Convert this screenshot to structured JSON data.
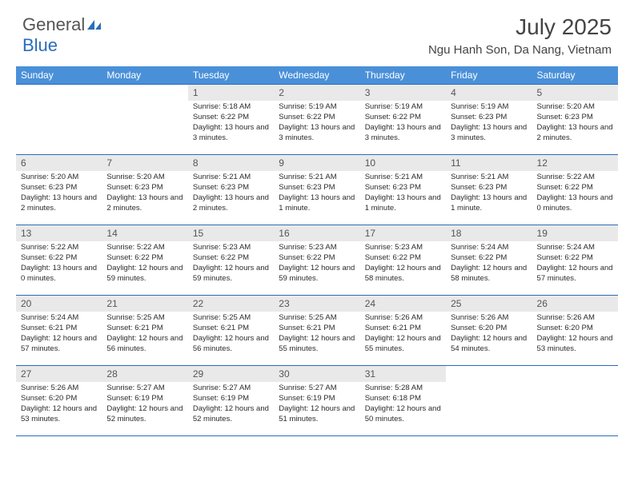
{
  "logo": {
    "text1": "General",
    "text2": "Blue"
  },
  "header": {
    "title": "July 2025",
    "location": "Ngu Hanh Son, Da Nang, Vietnam"
  },
  "colors": {
    "header_bg": "#4a90d9",
    "header_fg": "#ffffff",
    "daynum_bg": "#e9e9e9",
    "border": "#2a6db8",
    "text": "#2b2b2b"
  },
  "weekdays": [
    "Sunday",
    "Monday",
    "Tuesday",
    "Wednesday",
    "Thursday",
    "Friday",
    "Saturday"
  ],
  "weeks": [
    [
      null,
      null,
      {
        "n": "1",
        "sunrise": "5:18 AM",
        "sunset": "6:22 PM",
        "daylight": "13 hours and 3 minutes."
      },
      {
        "n": "2",
        "sunrise": "5:19 AM",
        "sunset": "6:22 PM",
        "daylight": "13 hours and 3 minutes."
      },
      {
        "n": "3",
        "sunrise": "5:19 AM",
        "sunset": "6:22 PM",
        "daylight": "13 hours and 3 minutes."
      },
      {
        "n": "4",
        "sunrise": "5:19 AM",
        "sunset": "6:23 PM",
        "daylight": "13 hours and 3 minutes."
      },
      {
        "n": "5",
        "sunrise": "5:20 AM",
        "sunset": "6:23 PM",
        "daylight": "13 hours and 2 minutes."
      }
    ],
    [
      {
        "n": "6",
        "sunrise": "5:20 AM",
        "sunset": "6:23 PM",
        "daylight": "13 hours and 2 minutes."
      },
      {
        "n": "7",
        "sunrise": "5:20 AM",
        "sunset": "6:23 PM",
        "daylight": "13 hours and 2 minutes."
      },
      {
        "n": "8",
        "sunrise": "5:21 AM",
        "sunset": "6:23 PM",
        "daylight": "13 hours and 2 minutes."
      },
      {
        "n": "9",
        "sunrise": "5:21 AM",
        "sunset": "6:23 PM",
        "daylight": "13 hours and 1 minute."
      },
      {
        "n": "10",
        "sunrise": "5:21 AM",
        "sunset": "6:23 PM",
        "daylight": "13 hours and 1 minute."
      },
      {
        "n": "11",
        "sunrise": "5:21 AM",
        "sunset": "6:23 PM",
        "daylight": "13 hours and 1 minute."
      },
      {
        "n": "12",
        "sunrise": "5:22 AM",
        "sunset": "6:22 PM",
        "daylight": "13 hours and 0 minutes."
      }
    ],
    [
      {
        "n": "13",
        "sunrise": "5:22 AM",
        "sunset": "6:22 PM",
        "daylight": "13 hours and 0 minutes."
      },
      {
        "n": "14",
        "sunrise": "5:22 AM",
        "sunset": "6:22 PM",
        "daylight": "12 hours and 59 minutes."
      },
      {
        "n": "15",
        "sunrise": "5:23 AM",
        "sunset": "6:22 PM",
        "daylight": "12 hours and 59 minutes."
      },
      {
        "n": "16",
        "sunrise": "5:23 AM",
        "sunset": "6:22 PM",
        "daylight": "12 hours and 59 minutes."
      },
      {
        "n": "17",
        "sunrise": "5:23 AM",
        "sunset": "6:22 PM",
        "daylight": "12 hours and 58 minutes."
      },
      {
        "n": "18",
        "sunrise": "5:24 AM",
        "sunset": "6:22 PM",
        "daylight": "12 hours and 58 minutes."
      },
      {
        "n": "19",
        "sunrise": "5:24 AM",
        "sunset": "6:22 PM",
        "daylight": "12 hours and 57 minutes."
      }
    ],
    [
      {
        "n": "20",
        "sunrise": "5:24 AM",
        "sunset": "6:21 PM",
        "daylight": "12 hours and 57 minutes."
      },
      {
        "n": "21",
        "sunrise": "5:25 AM",
        "sunset": "6:21 PM",
        "daylight": "12 hours and 56 minutes."
      },
      {
        "n": "22",
        "sunrise": "5:25 AM",
        "sunset": "6:21 PM",
        "daylight": "12 hours and 56 minutes."
      },
      {
        "n": "23",
        "sunrise": "5:25 AM",
        "sunset": "6:21 PM",
        "daylight": "12 hours and 55 minutes."
      },
      {
        "n": "24",
        "sunrise": "5:26 AM",
        "sunset": "6:21 PM",
        "daylight": "12 hours and 55 minutes."
      },
      {
        "n": "25",
        "sunrise": "5:26 AM",
        "sunset": "6:20 PM",
        "daylight": "12 hours and 54 minutes."
      },
      {
        "n": "26",
        "sunrise": "5:26 AM",
        "sunset": "6:20 PM",
        "daylight": "12 hours and 53 minutes."
      }
    ],
    [
      {
        "n": "27",
        "sunrise": "5:26 AM",
        "sunset": "6:20 PM",
        "daylight": "12 hours and 53 minutes."
      },
      {
        "n": "28",
        "sunrise": "5:27 AM",
        "sunset": "6:19 PM",
        "daylight": "12 hours and 52 minutes."
      },
      {
        "n": "29",
        "sunrise": "5:27 AM",
        "sunset": "6:19 PM",
        "daylight": "12 hours and 52 minutes."
      },
      {
        "n": "30",
        "sunrise": "5:27 AM",
        "sunset": "6:19 PM",
        "daylight": "12 hours and 51 minutes."
      },
      {
        "n": "31",
        "sunrise": "5:28 AM",
        "sunset": "6:18 PM",
        "daylight": "12 hours and 50 minutes."
      },
      null,
      null
    ]
  ],
  "labels": {
    "sunrise": "Sunrise:",
    "sunset": "Sunset:",
    "daylight": "Daylight:"
  }
}
